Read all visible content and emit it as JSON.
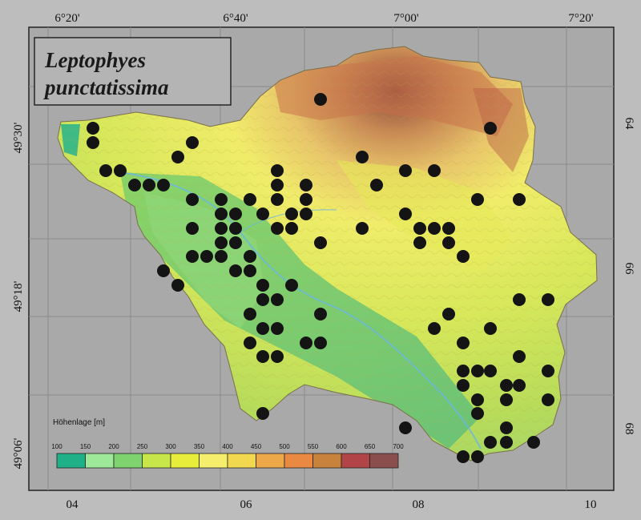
{
  "map": {
    "title_line1": "Leptophyes",
    "title_line2": "punctatissima",
    "top_ticks": [
      "6°20'",
      "6°40'",
      "7°00'",
      "7°20'"
    ],
    "left_ticks": [
      "49°30'",
      "49°18'",
      "49°06'"
    ],
    "bottom_ticks": [
      "04",
      "06",
      "08",
      "10"
    ],
    "right_ticks": [
      "64",
      "66",
      "68"
    ]
  },
  "legend": {
    "title": "Höhenlage [m]",
    "stops": [
      "100",
      "150",
      "200",
      "250",
      "300",
      "350",
      "400",
      "450",
      "500",
      "550",
      "600",
      "650",
      "700"
    ],
    "colors": [
      "#1fb088",
      "#9ee89a",
      "#7fd36e",
      "#c6e64a",
      "#e8ec3a",
      "#f4ee6c",
      "#f2d84e",
      "#eda84a",
      "#ea8a42",
      "#c9823c",
      "#b04446",
      "#8a4f4c",
      "#4a2c38"
    ]
  },
  "colors": {
    "background": "#a8a8a8",
    "frame": "#222222",
    "grid": "#8a8a8a",
    "dot": "#141414"
  },
  "occurrence_points": [
    [
      116,
      160
    ],
    [
      116,
      178
    ],
    [
      240,
      178
    ],
    [
      222,
      196
    ],
    [
      132,
      213
    ],
    [
      150,
      213
    ],
    [
      168,
      231
    ],
    [
      186,
      231
    ],
    [
      204,
      231
    ],
    [
      400,
      124
    ],
    [
      612,
      160
    ],
    [
      452,
      196
    ],
    [
      346,
      213
    ],
    [
      506,
      213
    ],
    [
      542,
      213
    ],
    [
      240,
      249
    ],
    [
      276,
      249
    ],
    [
      312,
      249
    ],
    [
      346,
      231
    ],
    [
      346,
      249
    ],
    [
      382,
      231
    ],
    [
      382,
      249
    ],
    [
      470,
      231
    ],
    [
      596,
      249
    ],
    [
      648,
      249
    ],
    [
      276,
      267
    ],
    [
      294,
      267
    ],
    [
      328,
      267
    ],
    [
      364,
      267
    ],
    [
      382,
      267
    ],
    [
      506,
      267
    ],
    [
      240,
      285
    ],
    [
      276,
      285
    ],
    [
      294,
      285
    ],
    [
      346,
      285
    ],
    [
      364,
      285
    ],
    [
      452,
      285
    ],
    [
      524,
      285
    ],
    [
      542,
      285
    ],
    [
      560,
      285
    ],
    [
      276,
      303
    ],
    [
      294,
      303
    ],
    [
      400,
      303
    ],
    [
      524,
      303
    ],
    [
      560,
      303
    ],
    [
      240,
      320
    ],
    [
      258,
      320
    ],
    [
      276,
      320
    ],
    [
      312,
      320
    ],
    [
      578,
      320
    ],
    [
      204,
      338
    ],
    [
      294,
      338
    ],
    [
      312,
      338
    ],
    [
      222,
      356
    ],
    [
      328,
      356
    ],
    [
      364,
      356
    ],
    [
      328,
      374
    ],
    [
      346,
      374
    ],
    [
      648,
      374
    ],
    [
      684,
      374
    ],
    [
      312,
      392
    ],
    [
      400,
      392
    ],
    [
      560,
      392
    ],
    [
      328,
      410
    ],
    [
      346,
      410
    ],
    [
      542,
      410
    ],
    [
      612,
      410
    ],
    [
      312,
      428
    ],
    [
      382,
      428
    ],
    [
      400,
      428
    ],
    [
      578,
      428
    ],
    [
      328,
      445
    ],
    [
      346,
      445
    ],
    [
      648,
      445
    ],
    [
      578,
      463
    ],
    [
      596,
      463
    ],
    [
      612,
      463
    ],
    [
      684,
      463
    ],
    [
      578,
      481
    ],
    [
      632,
      481
    ],
    [
      648,
      481
    ],
    [
      596,
      499
    ],
    [
      632,
      499
    ],
    [
      684,
      499
    ],
    [
      328,
      516
    ],
    [
      596,
      516
    ],
    [
      506,
      534
    ],
    [
      632,
      534
    ],
    [
      612,
      552
    ],
    [
      632,
      552
    ],
    [
      666,
      552
    ],
    [
      578,
      570
    ],
    [
      596,
      570
    ]
  ]
}
